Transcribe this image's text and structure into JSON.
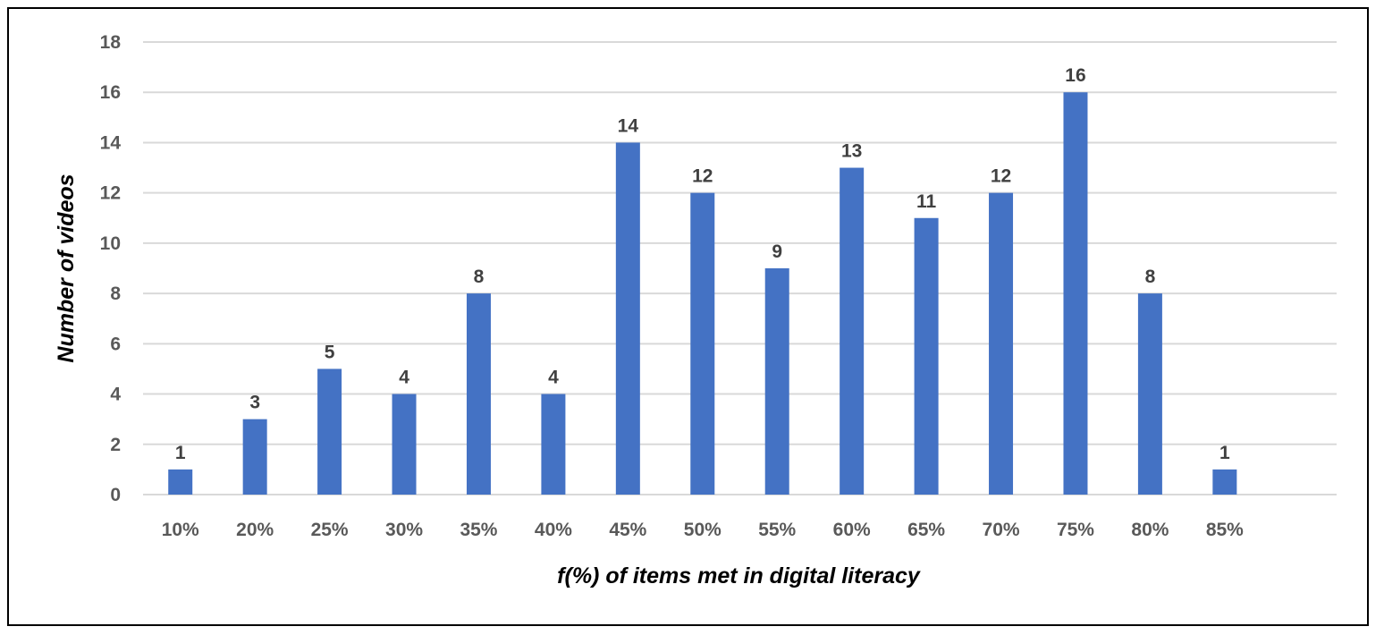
{
  "chart_data": {
    "type": "bar",
    "title": "",
    "xlabel": "f(%) of items met in digital literacy",
    "ylabel": "Number of videos",
    "categories": [
      "10%",
      "20%",
      "25%",
      "30%",
      "35%",
      "40%",
      "45%",
      "50%",
      "55%",
      "60%",
      "65%",
      "70%",
      "75%",
      "80%",
      "85%"
    ],
    "values": [
      1,
      3,
      5,
      4,
      8,
      4,
      14,
      12,
      9,
      13,
      11,
      12,
      16,
      8,
      1
    ],
    "ylim": [
      0,
      18
    ],
    "yticks": [
      0,
      2,
      4,
      6,
      8,
      10,
      12,
      14,
      16,
      18
    ],
    "grid": true,
    "legend": "none",
    "data_labels": true,
    "bar_color": "#4472C4",
    "grid_color": "#D9D9D9"
  }
}
